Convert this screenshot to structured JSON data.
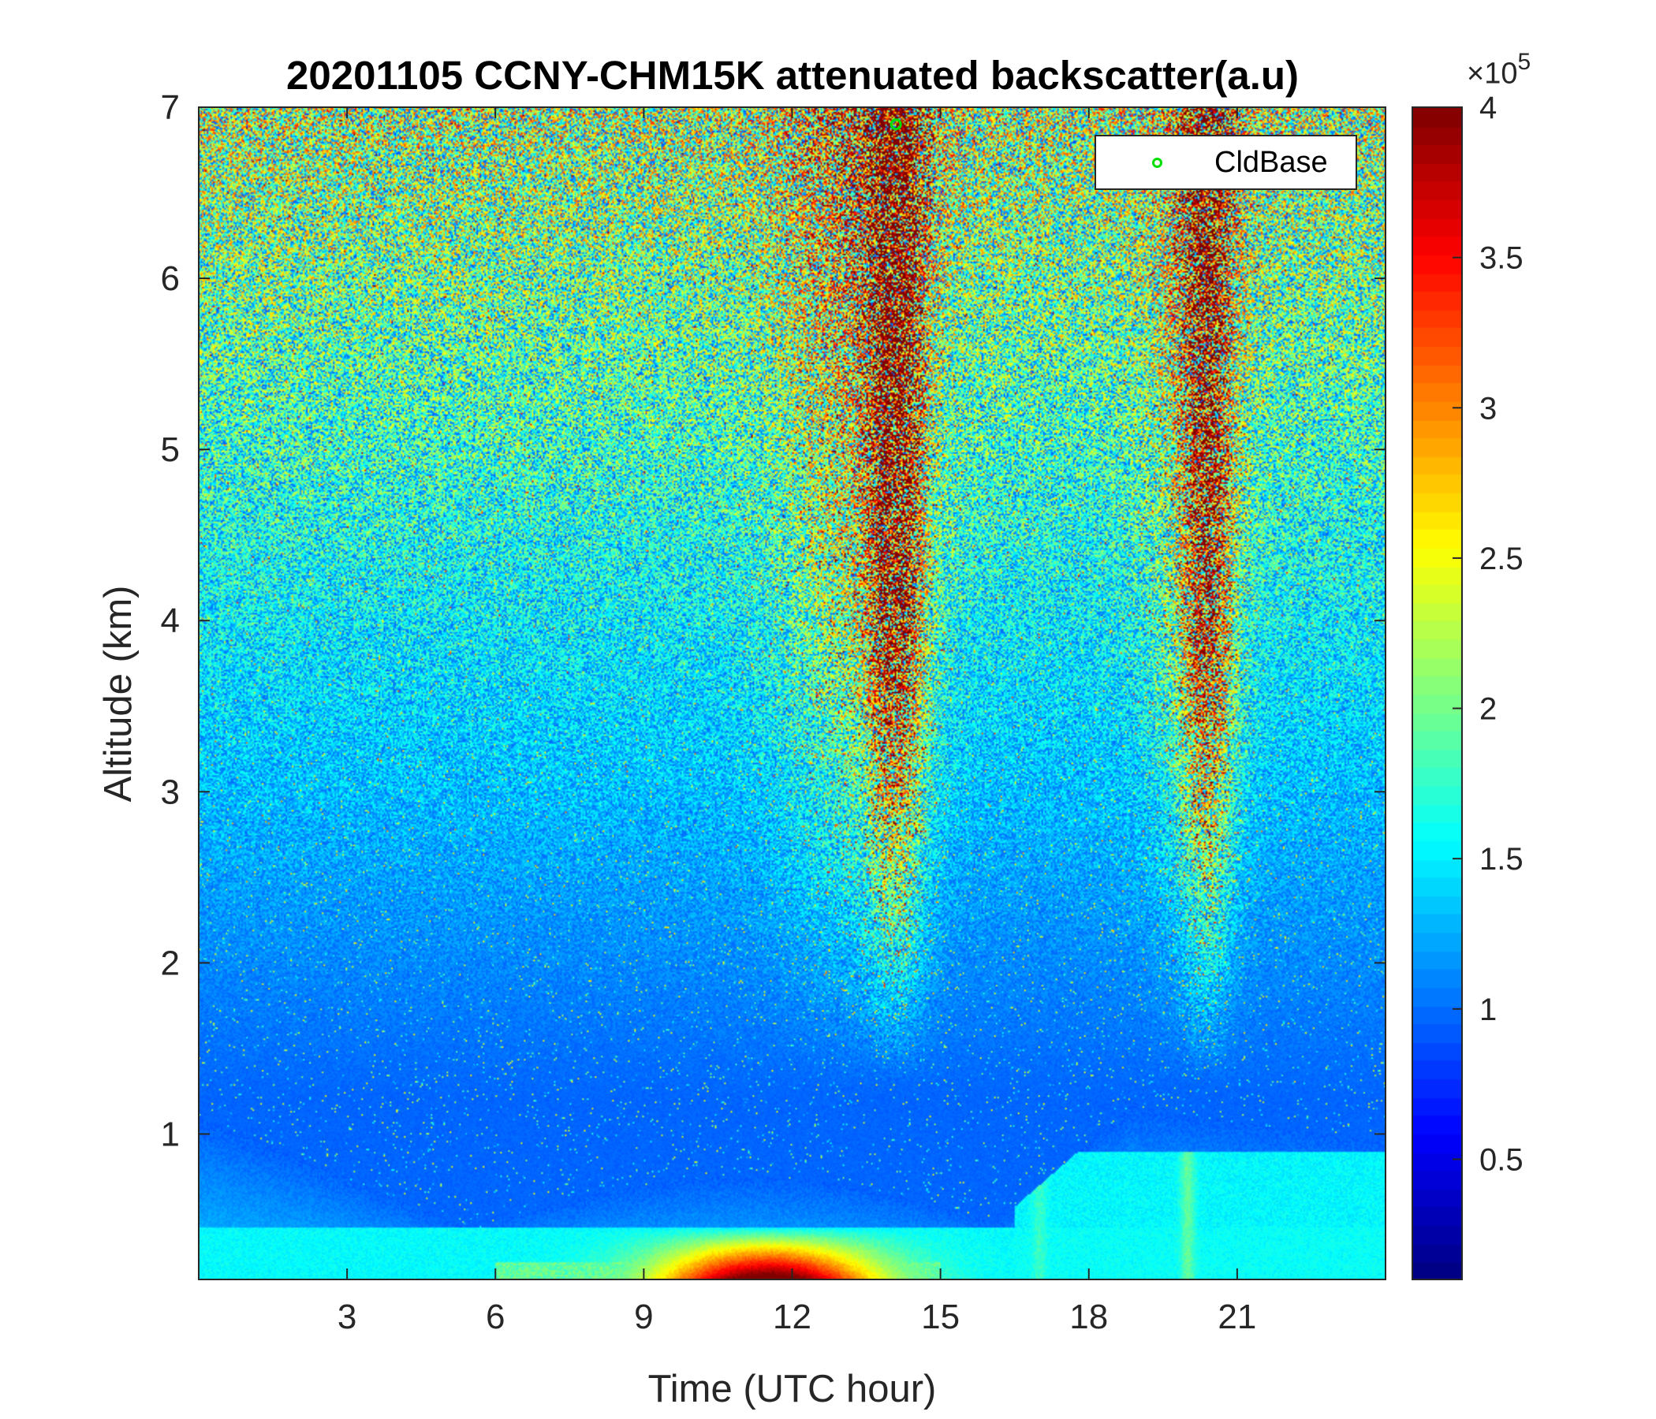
{
  "title": "20201105 CCNY-CHM15K attenuated backscatter(a.u)",
  "chart_data": {
    "type": "heatmap",
    "title": "20201105 CCNY-CHM15K attenuated backscatter(a.u)",
    "xlabel": "Time (UTC hour)",
    "ylabel": "Altitude (km)",
    "xlim": [
      0,
      24
    ],
    "ylim": [
      0.15,
      7
    ],
    "xticks": [
      3,
      6,
      9,
      12,
      15,
      18,
      21
    ],
    "yticks": [
      1,
      2,
      3,
      4,
      5,
      6,
      7
    ],
    "colormap": "jet",
    "colorbar": {
      "range": [
        0.1,
        4
      ],
      "ticks": [
        0.5,
        1,
        1.5,
        2,
        2.5,
        3,
        3.5,
        4
      ],
      "multiplier": "×10",
      "exponent": "5"
    },
    "legend": {
      "entries": [
        {
          "name": "CldBase",
          "marker": "circle",
          "color": "#00e000"
        }
      ],
      "location": "top-right"
    },
    "series": [
      {
        "name": "CldBase",
        "points": [
          {
            "x": 14.1,
            "y": 6.9
          }
        ]
      }
    ],
    "features": {
      "strong_column_1": {
        "x_center": 14.1,
        "half_width": 0.55,
        "outer_half_width": 1.5
      },
      "strong_column_2": {
        "x_center": 20.4,
        "half_width": 0.5,
        "outer_half_width": 1.0
      },
      "near_surface_max": {
        "x_start": 8.5,
        "x_end": 14.5,
        "y_top": 0.35
      }
    }
  }
}
